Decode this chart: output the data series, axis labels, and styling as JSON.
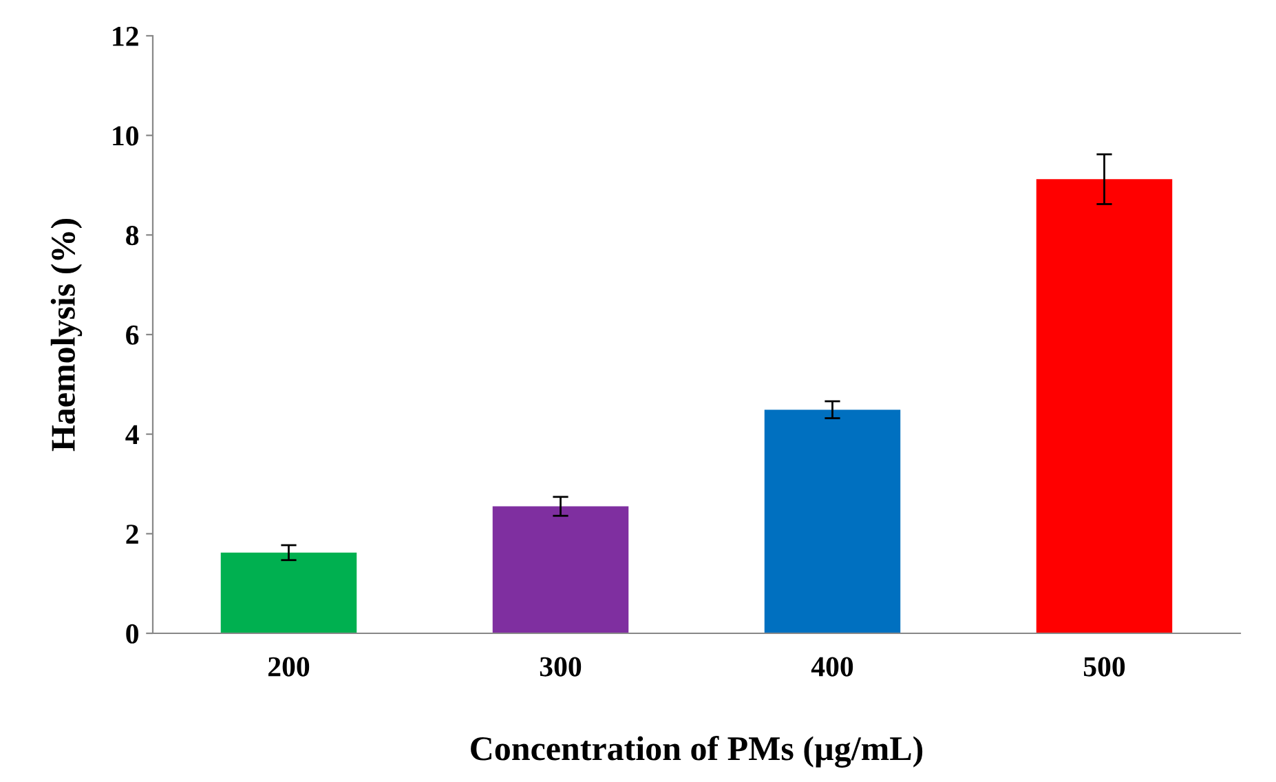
{
  "chart_data": {
    "type": "bar",
    "xlabel": "Concentration of PMs (µg/mL)",
    "ylabel": "Haemolysis (%)",
    "categories": [
      "200",
      "300",
      "400",
      "500"
    ],
    "values": [
      1.62,
      2.55,
      4.49,
      9.12
    ],
    "errors": [
      0.15,
      0.19,
      0.17,
      0.5
    ],
    "colors": [
      "#00b050",
      "#7f2fa0",
      "#0070c0",
      "#ff0000"
    ],
    "ylim": [
      0,
      12
    ],
    "yticks": [
      0,
      2,
      4,
      6,
      8,
      10,
      12
    ],
    "grid": false,
    "legend": false
  }
}
